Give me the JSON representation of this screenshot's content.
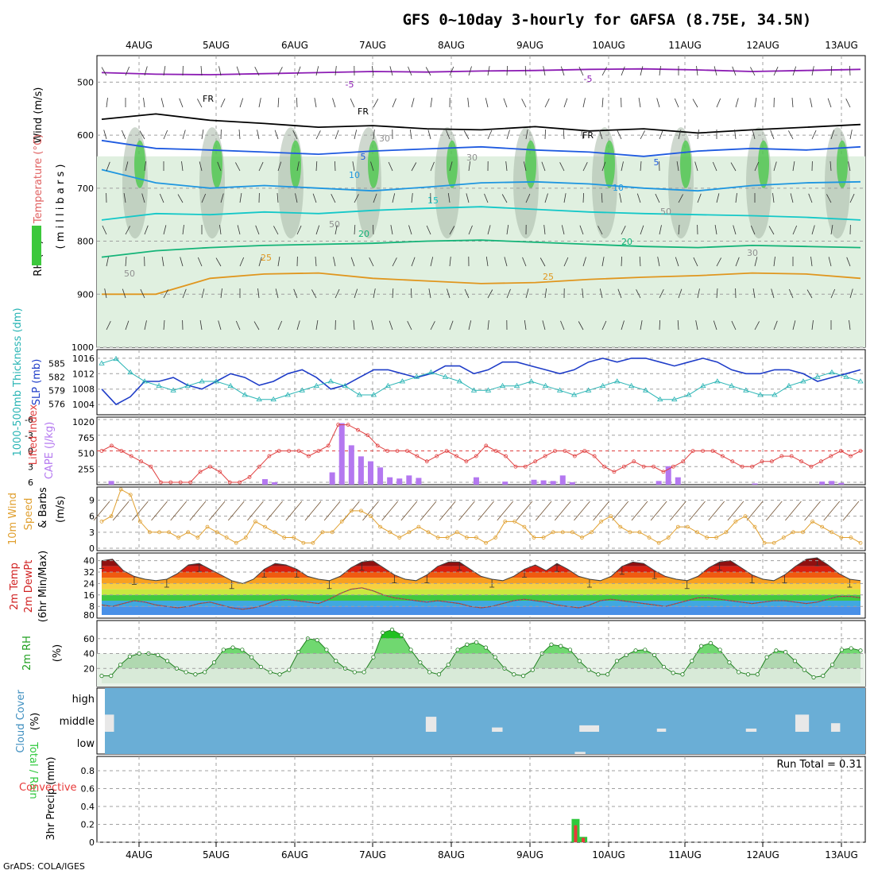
{
  "title": "GFS 0~10day 3-hourly for GAFSA (8.75E, 34.5N)",
  "footer": "GrADS: COLA/IGES",
  "run_total_text": "Run Total = 0.31",
  "dates": [
    "4AUG",
    "5AUG",
    "6AUG",
    "7AUG",
    "8AUG",
    "9AUG",
    "10AUG",
    "11AUG",
    "12AUG",
    "13AUG"
  ],
  "colors": {
    "rh_green": "#3cc83c",
    "rh_light": "#e0f0e0",
    "rh_gray": "#a8b8a8",
    "slp": "#1e3cc8",
    "thickness": "#28b4b4",
    "lifted": "#e04040",
    "cape": "#b478f0",
    "wind_speed": "#e0a030",
    "barb": "#705030",
    "cloud": "#6aaed6",
    "precip_total": "#2ec83c",
    "precip_conv": "#e83a3a",
    "dewpt_line": "#e03c3c"
  },
  "chart_data": [
    {
      "type": "heatmap",
      "name": "upper-air",
      "ylabel_parts": [
        "Wind (m/s)",
        "Temperature (°C)",
        "RH (%)"
      ],
      "ylabel_unit": "( m i l l i b a r s )",
      "y_ticks": [
        500,
        600,
        700,
        800,
        900,
        1000
      ],
      "ylim": [
        1000,
        450
      ],
      "contour_labels_temp": [
        "-5",
        "-5",
        "FR",
        "FR",
        "FR",
        "5",
        "5",
        "10",
        "10",
        "15",
        "20",
        "20",
        "25",
        "25"
      ],
      "contour_labels_rh": [
        "30",
        "30",
        "50",
        "50",
        "50",
        "30"
      ],
      "temp_isotherms": [
        {
          "label": "-5",
          "color": "#8c1cb4",
          "p": [
            482,
            485,
            486,
            484,
            482,
            480,
            481,
            479,
            478,
            476,
            475,
            477,
            480,
            478,
            476
          ]
        },
        {
          "label": "FR",
          "color": "#000000",
          "p": [
            570,
            560,
            572,
            578,
            585,
            582,
            588,
            590,
            584,
            592,
            588,
            596,
            590,
            585,
            580
          ]
        },
        {
          "label": "5",
          "color": "#1e5ae0",
          "p": [
            610,
            625,
            628,
            632,
            636,
            630,
            626,
            622,
            628,
            632,
            640,
            630,
            625,
            628,
            622
          ]
        },
        {
          "label": "10",
          "color": "#1e96e0",
          "p": [
            665,
            690,
            700,
            695,
            700,
            705,
            698,
            690,
            688,
            692,
            700,
            705,
            695,
            690,
            688
          ]
        },
        {
          "label": "15",
          "color": "#14c8c8",
          "p": [
            760,
            748,
            750,
            745,
            748,
            742,
            738,
            735,
            740,
            745,
            748,
            750,
            752,
            755,
            760
          ]
        },
        {
          "label": "20",
          "color": "#14b478",
          "p": [
            830,
            818,
            812,
            808,
            806,
            804,
            800,
            798,
            802,
            806,
            810,
            812,
            808,
            810,
            812
          ]
        },
        {
          "label": "25",
          "color": "#e0961e",
          "p": [
            900,
            900,
            870,
            862,
            860,
            870,
            875,
            880,
            878,
            872,
            868,
            865,
            860,
            862,
            870
          ]
        }
      ]
    },
    {
      "type": "line",
      "name": "slp-thickness",
      "ylabel_left": "1000-500mb Thickness (dm)",
      "ylabel_right": "SLP (mb)",
      "left_ticks": [
        576,
        579,
        582,
        585
      ],
      "right_ticks": [
        1004,
        1008,
        1012,
        1016
      ],
      "series": [
        {
          "name": "SLP (mb)",
          "axis": "right",
          "values": [
            1008,
            1004,
            1006,
            1010,
            1010,
            1011,
            1009,
            1008,
            1010,
            1012,
            1011,
            1009,
            1010,
            1012,
            1013,
            1011,
            1008,
            1009,
            1011,
            1013,
            1013,
            1012,
            1011,
            1012,
            1014,
            1014,
            1012,
            1013,
            1015,
            1015,
            1014,
            1013,
            1012,
            1013,
            1015,
            1016,
            1015,
            1016,
            1016,
            1015,
            1014,
            1015,
            1016,
            1015,
            1013,
            1012,
            1012,
            1013,
            1013,
            1012,
            1010,
            1011,
            1012,
            1013
          ]
        },
        {
          "name": "1000-500mb Thickness (dm)",
          "axis": "left",
          "values": [
            585,
            586,
            583,
            581,
            580,
            579,
            580,
            581,
            581,
            580,
            578,
            577,
            577,
            578,
            579,
            580,
            581,
            580,
            578,
            578,
            580,
            581,
            582,
            583,
            582,
            581,
            579,
            579,
            580,
            580,
            581,
            580,
            579,
            578,
            579,
            580,
            581,
            580,
            579,
            577,
            577,
            578,
            580,
            581,
            580,
            579,
            578,
            578,
            580,
            581,
            582,
            583,
            582,
            581
          ]
        }
      ]
    },
    {
      "type": "bar",
      "name": "lifted-cape",
      "ylabel_left": "Lifted Index",
      "ylabel_right": "CAPE (J/kg)",
      "li_ticks": [
        -6,
        -3,
        0,
        3,
        6
      ],
      "cape_ticks": [
        255,
        510,
        765,
        1020
      ],
      "series": [
        {
          "name": "Lifted Index",
          "values": [
            0,
            -1,
            0,
            1,
            2,
            3,
            6,
            6,
            6,
            6,
            4,
            3,
            4,
            6,
            6,
            5,
            3,
            1,
            0,
            0,
            0,
            1,
            0,
            -1,
            -5,
            -5,
            -4,
            -3,
            -1,
            0,
            0,
            0,
            1,
            2,
            1,
            0,
            1,
            2,
            1,
            -1,
            0,
            1,
            3,
            3,
            2,
            1,
            0,
            0,
            1,
            0,
            1,
            3,
            4,
            3,
            2,
            3,
            3,
            4,
            3,
            2,
            0,
            0,
            0,
            1,
            2,
            3,
            3,
            2,
            2,
            1,
            1,
            2,
            3,
            2,
            1,
            0,
            1,
            0
          ]
        },
        {
          "name": "CAPE (J/kg)",
          "values": [
            0,
            60,
            0,
            0,
            0,
            0,
            0,
            0,
            0,
            0,
            0,
            0,
            0,
            0,
            0,
            0,
            0,
            90,
            40,
            0,
            0,
            0,
            0,
            0,
            200,
            1000,
            640,
            460,
            380,
            280,
            120,
            100,
            150,
            110,
            0,
            0,
            0,
            0,
            0,
            120,
            0,
            0,
            50,
            0,
            0,
            80,
            70,
            60,
            150,
            40,
            0,
            0,
            0,
            0,
            0,
            0,
            0,
            0,
            60,
            300,
            120,
            0,
            0,
            0,
            0,
            0,
            0,
            0,
            20,
            0,
            0,
            0,
            0,
            0,
            0,
            50,
            60,
            30,
            0,
            0
          ]
        }
      ]
    },
    {
      "type": "line",
      "name": "10m-wind",
      "ylabel_left": "10m Wind",
      "ylabel_mid": "Speed",
      "ylabel_right": "& Barbs",
      "ylabel_unit": "(m/s)",
      "y_ticks": [
        0,
        3,
        6,
        9
      ],
      "ylim": [
        0,
        11
      ],
      "series": [
        {
          "name": "Speed",
          "values": [
            5,
            6,
            11,
            10,
            5,
            3,
            3,
            3,
            2,
            3,
            2,
            4,
            3,
            2,
            1,
            2,
            5,
            4,
            3,
            2,
            2,
            1,
            1,
            3,
            3,
            5,
            7,
            7,
            6,
            4,
            3,
            2,
            3,
            4,
            3,
            2,
            2,
            3,
            2,
            2,
            1,
            2,
            5,
            5,
            4,
            2,
            2,
            3,
            3,
            3,
            2,
            3,
            5,
            6,
            4,
            3,
            3,
            2,
            1,
            2,
            4,
            4,
            3,
            2,
            2,
            3,
            5,
            6,
            4,
            1,
            1,
            2,
            3,
            3,
            5,
            4,
            3,
            2,
            2,
            1
          ]
        }
      ]
    },
    {
      "type": "area",
      "name": "2m-temp",
      "ylabel_parts": [
        "2m Temp",
        "2m DewPt",
        "(6hr Min/Max)"
      ],
      "y_ticks": [
        40,
        32,
        24,
        16,
        8,
        80
      ],
      "series": [
        {
          "name": "2m Temp",
          "values": [
            40,
            41,
            33,
            29,
            27,
            26,
            27,
            31,
            37,
            38,
            34,
            30,
            26,
            24,
            27,
            34,
            38,
            37,
            34,
            29,
            27,
            26,
            29,
            35,
            39,
            40,
            35,
            30,
            27,
            26,
            30,
            36,
            39,
            39,
            34,
            29,
            27,
            26,
            29,
            34,
            37,
            33,
            38,
            34,
            29,
            27,
            26,
            29,
            36,
            39,
            38,
            33,
            29,
            27,
            26,
            29,
            35,
            39,
            40,
            35,
            30,
            27,
            26,
            30,
            36,
            41,
            42,
            37,
            31,
            27,
            26
          ]
        },
        {
          "name": "2m DewPt",
          "values": [
            9,
            8,
            10,
            12,
            11,
            9,
            8,
            7,
            8,
            10,
            11,
            9,
            7,
            6,
            7,
            9,
            12,
            13,
            12,
            11,
            10,
            13,
            17,
            20,
            21,
            19,
            16,
            14,
            13,
            12,
            11,
            12,
            11,
            10,
            8,
            7,
            8,
            10,
            12,
            13,
            12,
            11,
            9,
            8,
            7,
            9,
            12,
            13,
            12,
            11,
            10,
            9,
            8,
            10,
            12,
            14,
            14,
            13,
            12,
            11,
            10,
            11,
            12,
            12,
            11,
            10,
            11,
            13,
            15,
            15,
            14
          ]
        }
      ]
    },
    {
      "type": "area",
      "name": "2m-rh",
      "ylabel_left": "2m RH",
      "ylabel_unit": "(%)",
      "y_ticks": [
        20,
        40,
        60
      ],
      "ylim": [
        0,
        80
      ],
      "series": [
        {
          "name": "2m RH",
          "values": [
            10,
            10,
            25,
            36,
            40,
            40,
            38,
            30,
            20,
            15,
            12,
            15,
            28,
            45,
            48,
            45,
            35,
            22,
            15,
            12,
            18,
            42,
            60,
            58,
            45,
            30,
            20,
            15,
            15,
            35,
            68,
            72,
            65,
            45,
            28,
            15,
            12,
            25,
            45,
            52,
            55,
            48,
            35,
            20,
            12,
            10,
            18,
            40,
            52,
            50,
            45,
            30,
            18,
            12,
            12,
            30,
            38,
            44,
            45,
            38,
            22,
            14,
            12,
            30,
            50,
            54,
            45,
            28,
            15,
            12,
            12,
            35,
            44,
            42,
            30,
            18,
            8,
            10,
            25,
            45,
            47,
            44
          ]
        }
      ]
    },
    {
      "type": "bar",
      "name": "cloud-cover",
      "ylabel_left": "Cloud Cover",
      "ylabel_unit": "(%)",
      "levels": [
        "high",
        "middle",
        "low"
      ],
      "series": [
        {
          "name": "middle",
          "values": [
            {
              "x": 0.0,
              "w": 0.012,
              "v": 80
            },
            {
              "x": 0.422,
              "w": 0.014,
              "v": 70
            },
            {
              "x": 0.509,
              "w": 0.014,
              "v": 20
            },
            {
              "x": 0.624,
              "w": 0.026,
              "v": 30
            },
            {
              "x": 0.726,
              "w": 0.012,
              "v": 15
            },
            {
              "x": 0.843,
              "w": 0.014,
              "v": 15
            },
            {
              "x": 0.908,
              "w": 0.018,
              "v": 80
            },
            {
              "x": 0.955,
              "w": 0.012,
              "v": 40
            }
          ]
        },
        {
          "name": "low",
          "values": [
            {
              "x": 0.618,
              "w": 0.014,
              "v": 10
            }
          ]
        }
      ]
    },
    {
      "type": "bar",
      "name": "3hr-precip",
      "ylabel_left": "Total / Rain",
      "ylabel_left2": "Convective",
      "ylabel_unit": "3hr Precip (mm)",
      "y_ticks": [
        0,
        0.2,
        0.4,
        0.6,
        0.8
      ],
      "ylim": [
        0,
        0.96
      ],
      "series": [
        {
          "name": "Total / Rain",
          "values": [
            {
              "t": 0.623,
              "v": 0.26
            },
            {
              "t": 0.633,
              "v": 0.06
            }
          ]
        },
        {
          "name": "Convective",
          "values": [
            {
              "t": 0.623,
              "v": 0.19
            },
            {
              "t": 0.633,
              "v": 0.05
            }
          ]
        }
      ]
    }
  ]
}
